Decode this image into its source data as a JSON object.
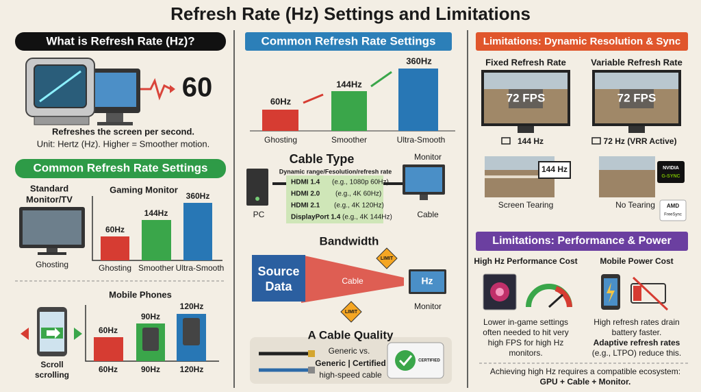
{
  "title": "Refresh Rate (Hz) Settings and Limitations",
  "left": {
    "header": "What is Refresh Rate (Hz)?",
    "big_value": "60",
    "desc_bold": "Refreshes the screen per second.",
    "desc": "Unit: Hertz (Hz). Higher = Smoother motion.",
    "settings_header": "Common Refresh Rate Settings",
    "standard_label": [
      "Standard",
      "Monitor/TV"
    ],
    "standard_caption": "Ghosting",
    "gaming_label": "Gaming Monitor",
    "gaming_bars": [
      {
        "label": "60Hz",
        "caption": "Ghosting"
      },
      {
        "label": "144Hz",
        "caption": "Smoother"
      },
      {
        "label": "360Hz",
        "caption": "Ultra-Smooth"
      }
    ],
    "mobile_label": "Mobile Phones",
    "scroll_caption": [
      "Scroll",
      "scrolling"
    ],
    "mobile_bars": [
      {
        "label": "60Hz",
        "caption": "60Hz"
      },
      {
        "label": "90Hz",
        "caption": "90Hz"
      },
      {
        "label": "120Hz",
        "caption": "120Hz"
      }
    ]
  },
  "middle": {
    "header": "Common Refresh Rate Settings",
    "bars": [
      {
        "label": "60Hz",
        "caption": "Ghosting"
      },
      {
        "label": "144Hz",
        "caption": "Smoother"
      },
      {
        "label": "360Hz",
        "caption": "Ultra-Smooth"
      }
    ],
    "cable_type": {
      "title": "Cable Type",
      "monitor": "Monitor",
      "subtitle": "Dynamic range/Fesolution/refresh rate",
      "rows": [
        {
          "name": "HDMI 1.4",
          "example": "(e.g., 1080p 60Hz)"
        },
        {
          "name": "HDMI 2.0",
          "example": "(e.g., 4K 60Hz)"
        },
        {
          "name": "HDMI 2.1",
          "example": "(e.g., 4K 120Hz)"
        },
        {
          "name": "DisplayPort 1.4",
          "example": "(e.g., 4K 144Hz)"
        }
      ],
      "pc": "PC",
      "cable": "Cable"
    },
    "bandwidth": {
      "title": "Bandwidth",
      "source": [
        "Source",
        "Data"
      ],
      "cable": "Cable",
      "limit_top": "LIMIT",
      "limit_bottom": "LIMIT",
      "screen": "Hz",
      "monitor": "Monitor"
    },
    "cable_quality": {
      "title": "A Cable Quality",
      "line1": "Generic vs.",
      "line2": "Generic | Certified",
      "line3": "high-speed cable",
      "badge": "CERTIFIED"
    }
  },
  "right": {
    "header": "Limitations: Dynamic Resolution & Sync",
    "fixed_title": "Fixed Refresh Rate",
    "variable_title": "Variable Refresh Rate",
    "fixed_fps": "72 FPS",
    "variable_fps": "72 FPS",
    "fixed_caption": "144 Hz",
    "variable_caption": "72 Hz (VRR Active)",
    "tearing_badge": "144 Hz",
    "tearing_caption": "Screen Tearing",
    "no_tearing_caption": "No Tearing",
    "gsync": [
      "NVIDIA",
      "G-SYNC"
    ],
    "freesync": [
      "AMD",
      "FreeSync"
    ],
    "perf_header": "Limitations: Performance & Power",
    "perf_title": "High Hz Performance Cost",
    "power_title": "Mobile Power Cost",
    "perf_text": [
      "Lower in-game settings",
      "often needed to hit very",
      "high FPS for high Hz",
      "monitors."
    ],
    "power_text": [
      "High refresh rates drain",
      "battery faster."
    ],
    "power_text_bold": "Adaptive refresh rates",
    "power_text_end": "(e.g., LTPO) reduce this.",
    "footer": "Achieving high Hz requires a compatible ecosystem:",
    "footer_bold": "GPU + Cable + Monitor."
  }
}
